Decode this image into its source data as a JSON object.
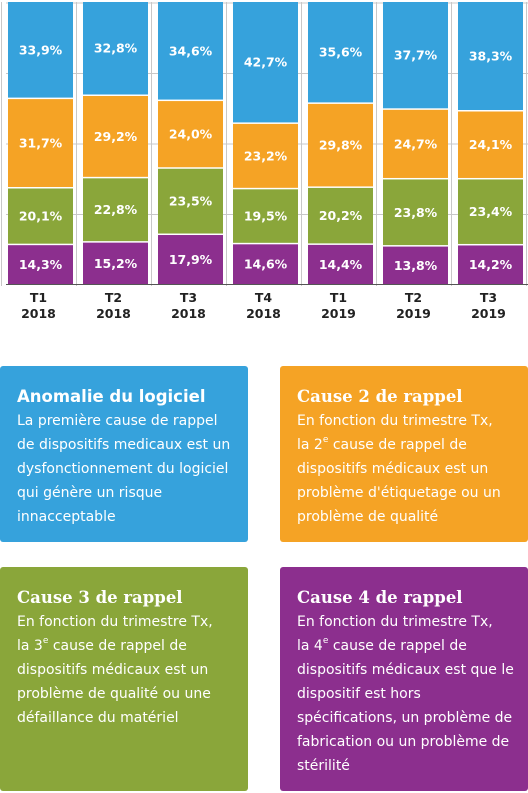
{
  "chart_data": {
    "type": "bar",
    "stacked": true,
    "categories": [
      "T1\n2018",
      "T2\n2018",
      "T3\n2018",
      "T4\n2018",
      "T1\n2019",
      "T2\n2019",
      "T3\n2019"
    ],
    "series": [
      {
        "color": "#8c2f8e",
        "values": [
          14.3,
          15.2,
          17.9,
          14.6,
          14.4,
          13.8,
          14.2
        ],
        "labels": [
          "14,3%",
          "15,2%",
          "17,9%",
          "14,6%",
          "14,4%",
          "13,8%",
          "14,2%"
        ]
      },
      {
        "color": "#8aa63a",
        "values": [
          20.1,
          22.8,
          23.5,
          19.5,
          20.2,
          23.8,
          23.4
        ],
        "labels": [
          "20,1%",
          "22,8%",
          "23,5%",
          "19,5%",
          "20,2%",
          "23,8%",
          "23,4%"
        ]
      },
      {
        "color": "#f5a325",
        "values": [
          31.7,
          29.2,
          24.0,
          23.2,
          29.8,
          24.7,
          24.1
        ],
        "labels": [
          "31,7%",
          "29,2%",
          "24,0%",
          "23,2%",
          "29,8%",
          "24,7%",
          "24,1%"
        ]
      },
      {
        "color": "#36a2dc",
        "values": [
          33.9,
          32.8,
          34.6,
          42.7,
          35.6,
          37.7,
          38.3
        ],
        "labels": [
          "33,9%",
          "32,8%",
          "34,6%",
          "42,7%",
          "35,6%",
          "37,7%",
          "38,3%"
        ]
      }
    ],
    "ylim": [
      0,
      100
    ],
    "grid": true,
    "title": "",
    "xlabel": "",
    "ylabel": ""
  },
  "colors": {
    "blue": "#36a2dc",
    "orange": "#f5a325",
    "green": "#8aa63a",
    "purple": "#8c2f8e",
    "grid": "#c8c8c8"
  },
  "cards": {
    "card1": {
      "title": "Anomalie du logiciel",
      "text": "La première cause de rappel de dispositifs medicaux est un dysfonctionnement du logiciel qui génère un risque innacceptable"
    },
    "card2": {
      "title": "Cause 2 de rappel",
      "line1": "En fonction du trimestre Tx,",
      "pre": "la 2",
      "sup": "e",
      "rest": " cause de rappel de dispositifs médicaux est un problème d'étiquetage ou un problème de qualité"
    },
    "card3": {
      "title": "Cause 3 de rappel",
      "line1": "En fonction du trimestre Tx,",
      "pre": "la 3",
      "sup": "e",
      "rest": " cause de rappel de dispositifs médicaux est un problème de qualité ou une défaillance du matériel"
    },
    "card4": {
      "title": "Cause 4 de rappel",
      "line1": "En fonction du trimestre Tx,",
      "pre": "la 4",
      "sup": "e",
      "rest": " cause de rappel de dispositifs médicaux est que le dispositif est hors spécifications, un problème de fabrication ou un problème de stérilité"
    }
  }
}
